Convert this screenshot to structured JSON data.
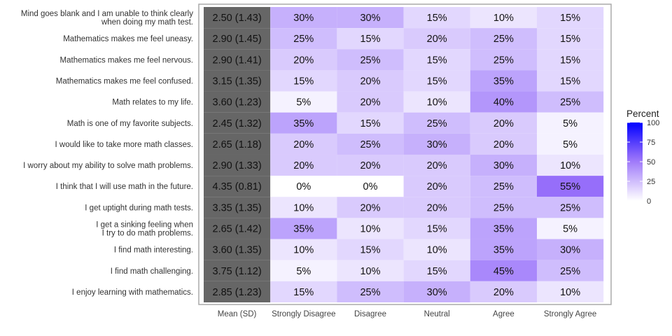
{
  "chart_data": {
    "type": "heatmap",
    "columns": [
      "Mean (SD)",
      "Strongly Disagree",
      "Disagree",
      "Neutral",
      "Agree",
      "Strongly Agree"
    ],
    "rows": [
      {
        "label": "Mind goes blank and I am unable to think clearly when doing my math test.",
        "mean_sd": "2.50 (1.43)",
        "values": [
          30,
          30,
          15,
          10,
          15
        ]
      },
      {
        "label": "Mathematics makes me feel uneasy.",
        "mean_sd": "2.90 (1.45)",
        "values": [
          25,
          15,
          20,
          25,
          15
        ]
      },
      {
        "label": "Mathematics makes me feel nervous.",
        "mean_sd": "2.90 (1.41)",
        "values": [
          20,
          25,
          15,
          25,
          15
        ]
      },
      {
        "label": "Mathematics makes me feel confused.",
        "mean_sd": "3.15 (1.35)",
        "values": [
          15,
          20,
          15,
          35,
          15
        ]
      },
      {
        "label": "Math relates to my life.",
        "mean_sd": "3.60 (1.23)",
        "values": [
          5,
          20,
          10,
          40,
          25
        ]
      },
      {
        "label": "Math is one of my favorite subjects.",
        "mean_sd": "2.45 (1.32)",
        "values": [
          35,
          15,
          25,
          20,
          5
        ]
      },
      {
        "label": "I would like to take more math classes.",
        "mean_sd": "2.65 (1.18)",
        "values": [
          20,
          25,
          30,
          20,
          5
        ]
      },
      {
        "label": "I worry about my ability to solve math problems.",
        "mean_sd": "2.90 (1.33)",
        "values": [
          20,
          20,
          20,
          30,
          10
        ]
      },
      {
        "label": "I think that I will use math in the future.",
        "mean_sd": "4.35 (0.81)",
        "values": [
          0,
          0,
          20,
          25,
          55
        ]
      },
      {
        "label": "I get uptight during math tests.",
        "mean_sd": "3.35 (1.35)",
        "values": [
          10,
          20,
          20,
          25,
          25
        ]
      },
      {
        "label": "I get a sinking feeling when I try to do math problems.",
        "mean_sd": "2.65 (1.42)",
        "values": [
          35,
          10,
          15,
          35,
          5
        ]
      },
      {
        "label": "I find math interesting.",
        "mean_sd": "3.60 (1.35)",
        "values": [
          10,
          15,
          10,
          35,
          30
        ]
      },
      {
        "label": "I find math challenging.",
        "mean_sd": "3.75 (1.12)",
        "values": [
          5,
          10,
          15,
          45,
          25
        ]
      },
      {
        "label": "I enjoy learning with mathematics.",
        "mean_sd": "2.85 (1.23)",
        "values": [
          15,
          25,
          30,
          20,
          10
        ]
      }
    ],
    "value_suffix": "%",
    "legend": {
      "title": "Percent",
      "ticks": [
        0,
        25,
        50,
        75,
        100
      ],
      "range": [
        0,
        100
      ],
      "low_color": "#ffffff",
      "high_color": "#0000ff",
      "placement": "right"
    },
    "mean_column_color": "#666666",
    "grid": false
  }
}
